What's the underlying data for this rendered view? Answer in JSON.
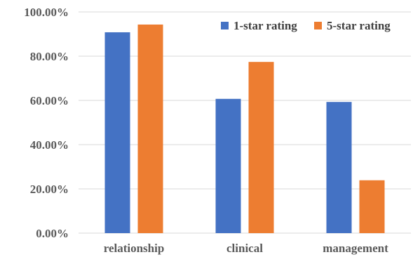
{
  "chart_data": {
    "type": "bar",
    "title": "",
    "xlabel": "",
    "ylabel": "",
    "categories": [
      "relationship",
      "clinical",
      "management"
    ],
    "series": [
      {
        "name": "1-star rating",
        "color": "#4472C4",
        "values": [
          90.8,
          60.7,
          59.3
        ]
      },
      {
        "name": "5-star rating",
        "color": "#ED7D31",
        "values": [
          94.3,
          77.4,
          23.9
        ]
      }
    ],
    "ylim": [
      0,
      100
    ],
    "yticks": [
      "0.00%",
      "20.00%",
      "40.00%",
      "60.00%",
      "80.00%",
      "100.00%"
    ],
    "grid": true,
    "legend_position": "top-right"
  }
}
